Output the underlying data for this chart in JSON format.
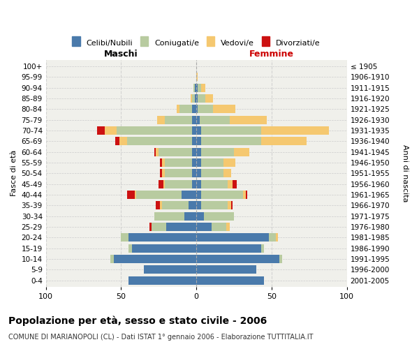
{
  "age_groups": [
    "0-4",
    "5-9",
    "10-14",
    "15-19",
    "20-24",
    "25-29",
    "30-34",
    "35-39",
    "40-44",
    "45-49",
    "50-54",
    "55-59",
    "60-64",
    "65-69",
    "70-74",
    "75-79",
    "80-84",
    "85-89",
    "90-94",
    "95-99",
    "100+"
  ],
  "birth_years": [
    "2001-2005",
    "1996-2000",
    "1991-1995",
    "1986-1990",
    "1981-1985",
    "1976-1980",
    "1971-1975",
    "1966-1970",
    "1961-1965",
    "1956-1960",
    "1951-1955",
    "1946-1950",
    "1941-1945",
    "1936-1940",
    "1931-1935",
    "1926-1930",
    "1921-1925",
    "1916-1920",
    "1911-1915",
    "1906-1910",
    "≤ 1905"
  ],
  "maschi": {
    "celibi": [
      45,
      35,
      55,
      43,
      45,
      20,
      8,
      5,
      10,
      3,
      3,
      3,
      3,
      3,
      3,
      3,
      3,
      1,
      1,
      0,
      0
    ],
    "coniugati": [
      0,
      0,
      2,
      2,
      5,
      10,
      20,
      18,
      30,
      18,
      18,
      18,
      22,
      43,
      50,
      18,
      8,
      2,
      1,
      0,
      0
    ],
    "vedovi": [
      0,
      0,
      0,
      0,
      0,
      0,
      0,
      1,
      1,
      1,
      2,
      2,
      2,
      5,
      8,
      5,
      2,
      1,
      0,
      0,
      0
    ],
    "divorziati": [
      0,
      0,
      0,
      0,
      0,
      1,
      0,
      3,
      5,
      3,
      1,
      1,
      1,
      3,
      5,
      0,
      0,
      0,
      0,
      0,
      0
    ]
  },
  "femmine": {
    "nubili": [
      45,
      40,
      55,
      43,
      48,
      10,
      5,
      3,
      3,
      3,
      3,
      3,
      3,
      3,
      3,
      2,
      1,
      1,
      1,
      0,
      0
    ],
    "coniugate": [
      0,
      0,
      2,
      2,
      5,
      10,
      20,
      18,
      28,
      18,
      15,
      15,
      22,
      40,
      40,
      20,
      10,
      5,
      2,
      0,
      0
    ],
    "vedove": [
      0,
      0,
      0,
      0,
      1,
      2,
      0,
      2,
      2,
      3,
      5,
      8,
      10,
      30,
      45,
      25,
      15,
      5,
      3,
      1,
      0
    ],
    "divorziate": [
      0,
      0,
      0,
      0,
      0,
      0,
      0,
      1,
      1,
      3,
      0,
      0,
      0,
      0,
      0,
      0,
      0,
      0,
      0,
      0,
      0
    ]
  },
  "colors": {
    "celibi_nubili": "#4a7aab",
    "coniugati": "#b8cba0",
    "vedovi": "#f5c870",
    "divorziati": "#cc1111"
  },
  "xlim": 100,
  "title": "Popolazione per età, sesso e stato civile - 2006",
  "subtitle": "COMUNE DI MARIANOPOLI (CL) - Dati ISTAT 1° gennaio 2006 - Elaborazione TUTTITALIA.IT",
  "ylabel_left": "Fasce di età",
  "ylabel_right": "Anni di nascita",
  "xlabel_maschi": "Maschi",
  "xlabel_femmine": "Femmine",
  "legend_labels": [
    "Celibi/Nubili",
    "Coniugati/e",
    "Vedovi/e",
    "Divorziati/e"
  ],
  "bg_color": "#ffffff",
  "plot_bg": "#f0f0eb",
  "femmine_color": "#cc0000",
  "maschi_color": "#000000"
}
